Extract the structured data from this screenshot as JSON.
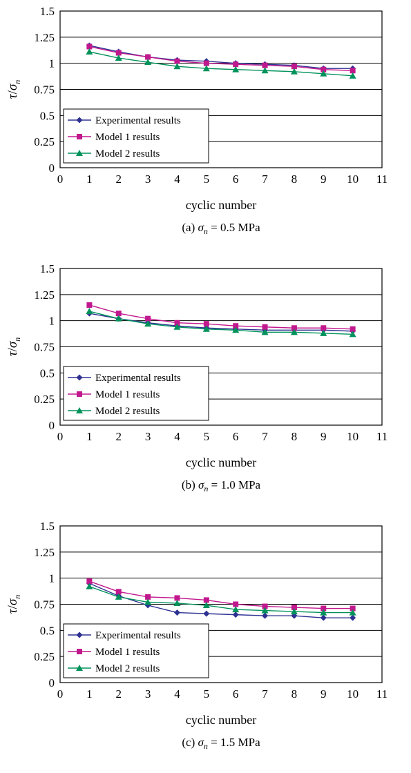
{
  "chart_data": [
    {
      "type": "line",
      "caption": {
        "prefix": "(a) ",
        "symbol": "σ",
        "sub": "n",
        "suffix": " = 0.5 MPa"
      },
      "ylabel": {
        "num": "τ",
        "den": "σ",
        "sub": "n"
      },
      "xlabel": "cyclic number",
      "xlim": [
        0,
        11
      ],
      "ylim": [
        0,
        1.5
      ],
      "xticks": [
        "0",
        "1",
        "2",
        "3",
        "4",
        "5",
        "6",
        "7",
        "8",
        "9",
        "10",
        "11"
      ],
      "yticks": [
        "0",
        "0.25",
        "0.5",
        "0.75",
        "1",
        "1.25",
        "1.5"
      ],
      "grid": "horizontal",
      "legend_position": "bottom-left",
      "x": [
        1,
        2,
        3,
        4,
        5,
        6,
        7,
        8,
        9,
        10
      ],
      "series": [
        {
          "name": "Experimental results",
          "color": "#2e3192",
          "marker": "diamond",
          "values": [
            1.17,
            1.11,
            1.06,
            1.03,
            1.02,
            1.0,
            0.99,
            0.98,
            0.95,
            0.95
          ]
        },
        {
          "name": "Model 1 results",
          "color": "#c2188e",
          "marker": "square",
          "values": [
            1.16,
            1.1,
            1.06,
            1.02,
            1.0,
            0.99,
            0.98,
            0.97,
            0.94,
            0.93
          ]
        },
        {
          "name": "Model 2 results",
          "color": "#00925b",
          "marker": "triangle",
          "values": [
            1.11,
            1.05,
            1.01,
            0.97,
            0.95,
            0.94,
            0.93,
            0.92,
            0.9,
            0.88
          ]
        }
      ]
    },
    {
      "type": "line",
      "caption": {
        "prefix": "(b) ",
        "symbol": "σ",
        "sub": "n",
        "suffix": " = 1.0 MPa"
      },
      "ylabel": {
        "num": "τ",
        "den": "σ",
        "sub": "n"
      },
      "xlabel": "cyclic number",
      "xlim": [
        0,
        11
      ],
      "ylim": [
        0,
        1.5
      ],
      "xticks": [
        "0",
        "1",
        "2",
        "3",
        "4",
        "5",
        "6",
        "7",
        "8",
        "9",
        "10",
        "11"
      ],
      "yticks": [
        "0",
        "0.25",
        "0.5",
        "0.75",
        "1",
        "1.25",
        "1.5"
      ],
      "grid": "horizontal",
      "legend_position": "bottom-left",
      "x": [
        1,
        2,
        3,
        4,
        5,
        6,
        7,
        8,
        9,
        10
      ],
      "series": [
        {
          "name": "Experimental results",
          "color": "#2e3192",
          "marker": "diamond",
          "values": [
            1.07,
            1.02,
            0.98,
            0.95,
            0.93,
            0.92,
            0.91,
            0.91,
            0.91,
            0.9
          ]
        },
        {
          "name": "Model 1 results",
          "color": "#c2188e",
          "marker": "square",
          "values": [
            1.15,
            1.07,
            1.02,
            0.98,
            0.97,
            0.95,
            0.94,
            0.93,
            0.93,
            0.92
          ]
        },
        {
          "name": "Model 2 results",
          "color": "#00925b",
          "marker": "triangle",
          "values": [
            1.09,
            1.02,
            0.97,
            0.94,
            0.92,
            0.91,
            0.89,
            0.89,
            0.88,
            0.87
          ]
        }
      ]
    },
    {
      "type": "line",
      "caption": {
        "prefix": "(c) ",
        "symbol": "σ",
        "sub": "n",
        "suffix": " = 1.5 MPa"
      },
      "ylabel": {
        "num": "τ",
        "den": "σ",
        "sub": "n"
      },
      "xlabel": "cyclic number",
      "xlim": [
        0,
        11
      ],
      "ylim": [
        0,
        1.5
      ],
      "xticks": [
        "0",
        "1",
        "2",
        "3",
        "4",
        "5",
        "6",
        "7",
        "8",
        "9",
        "10",
        "11"
      ],
      "yticks": [
        "0",
        "0.25",
        "0.5",
        "0.75",
        "1",
        "1.25",
        "1.5"
      ],
      "grid": "horizontal",
      "legend_position": "bottom-left",
      "x": [
        1,
        2,
        3,
        4,
        5,
        6,
        7,
        8,
        9,
        10
      ],
      "series": [
        {
          "name": "Experimental results",
          "color": "#2e3192",
          "marker": "diamond",
          "values": [
            0.95,
            0.83,
            0.74,
            0.67,
            0.66,
            0.65,
            0.64,
            0.64,
            0.62,
            0.62
          ]
        },
        {
          "name": "Model 1 results",
          "color": "#c2188e",
          "marker": "square",
          "values": [
            0.97,
            0.87,
            0.82,
            0.81,
            0.79,
            0.75,
            0.73,
            0.72,
            0.71,
            0.71
          ]
        },
        {
          "name": "Model 2 results",
          "color": "#00925b",
          "marker": "triangle",
          "values": [
            0.92,
            0.82,
            0.77,
            0.76,
            0.74,
            0.7,
            0.69,
            0.68,
            0.67,
            0.67
          ]
        }
      ]
    }
  ]
}
